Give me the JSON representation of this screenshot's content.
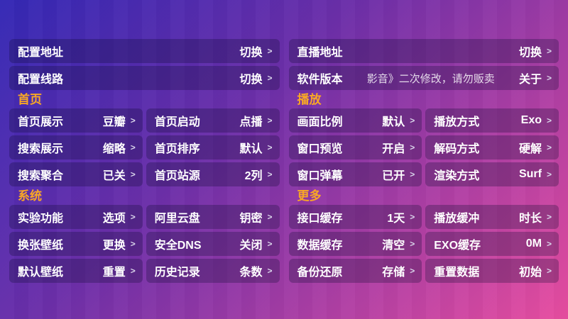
{
  "ui": {
    "chevron": ">"
  },
  "colors": {
    "background_top_left": "#3328b5",
    "background_bottom_right": "#e84da0",
    "section_title": "#f9a825",
    "row_background": "rgba(16,12,52,0.28)"
  },
  "top_rows": {
    "left": [
      {
        "label": "配置地址",
        "action": "切换"
      },
      {
        "label": "配置线路",
        "action": "切换"
      }
    ],
    "right": [
      {
        "label": "直播地址",
        "action": "切换"
      },
      {
        "label": "软件版本",
        "note": "影音》二次修改，请勿贩卖",
        "action": "关于"
      }
    ]
  },
  "sections": [
    {
      "title": "首页",
      "items": [
        {
          "label": "首页展示",
          "value": "豆瓣"
        },
        {
          "label": "首页启动",
          "value": "点播"
        },
        {
          "label": "搜索展示",
          "value": "缩略"
        },
        {
          "label": "首页排序",
          "value": "默认"
        },
        {
          "label": "搜索聚合",
          "value": "已关"
        },
        {
          "label": "首页站源",
          "value": "2列"
        }
      ]
    },
    {
      "title": "播放",
      "items": [
        {
          "label": "画面比例",
          "value": "默认"
        },
        {
          "label": "播放方式",
          "value": "Exo"
        },
        {
          "label": "窗口预览",
          "value": "开启"
        },
        {
          "label": "解码方式",
          "value": "硬解"
        },
        {
          "label": "窗口弹幕",
          "value": "已开"
        },
        {
          "label": "渲染方式",
          "value": "Surf"
        }
      ]
    },
    {
      "title": "系统",
      "items": [
        {
          "label": "实验功能",
          "value": "选项"
        },
        {
          "label": "阿里云盘",
          "value": "钥密"
        },
        {
          "label": "换张壁纸",
          "value": "更换"
        },
        {
          "label": "安全DNS",
          "value": "关闭"
        },
        {
          "label": "默认壁纸",
          "value": "重置"
        },
        {
          "label": "历史记录",
          "value": "条数"
        }
      ]
    },
    {
      "title": "更多",
      "items": [
        {
          "label": "接口缓存",
          "value": "1天"
        },
        {
          "label": "播放缓冲",
          "value": "时长"
        },
        {
          "label": "数据缓存",
          "value": "清空"
        },
        {
          "label": "EXO缓存",
          "value": "0M"
        },
        {
          "label": "备份还原",
          "value": "存储"
        },
        {
          "label": "重置数据",
          "value": "初始"
        }
      ]
    }
  ]
}
